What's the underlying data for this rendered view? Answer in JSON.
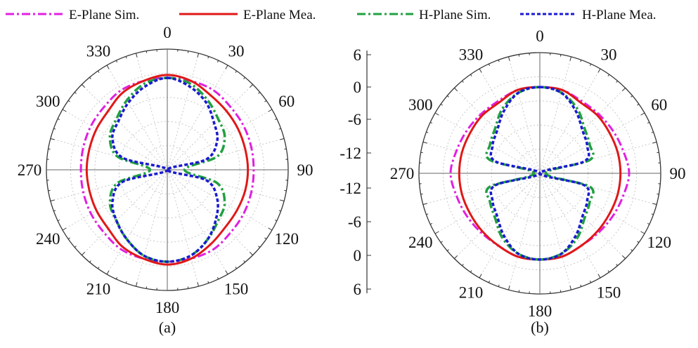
{
  "legend": {
    "items": [
      {
        "label": "E-Plane Sim.",
        "color": "#e020e0",
        "dash": "dashdot"
      },
      {
        "label": "E-Plane Mea.",
        "color": "#e01818",
        "dash": "solid"
      },
      {
        "label": "H-Plane Sim.",
        "color": "#20a040",
        "dash": "dashdot"
      },
      {
        "label": "H-Plane Mea.",
        "color": "#1a1ad0",
        "dash": "dotted"
      }
    ]
  },
  "chart_data": [
    {
      "type": "polar",
      "panel_label": "(a)",
      "angle_ticks": [
        "0",
        "30",
        "60",
        "90",
        "120",
        "150",
        "180",
        "210",
        "240",
        "270",
        "300",
        "330"
      ],
      "radial_range_db": [
        -15,
        6
      ],
      "radial_ticks": [
        "6",
        "0",
        "-6",
        "-12"
      ],
      "grid": true,
      "angles_deg": [
        0,
        15,
        30,
        45,
        60,
        75,
        90,
        105,
        120,
        135,
        150,
        165,
        180,
        195,
        210,
        225,
        240,
        255,
        270,
        285,
        300,
        315,
        330,
        345
      ],
      "series": [
        {
          "name": "E-Plane Sim.",
          "values": [
            1,
            1,
            1,
            0.5,
            0.3,
            0.1,
            0,
            0.1,
            0.3,
            0.5,
            1,
            1,
            1,
            1,
            1,
            0.5,
            0.3,
            0.1,
            0,
            0.1,
            0.3,
            0.5,
            1,
            1
          ]
        },
        {
          "name": "E-Plane Mea.",
          "values": [
            1.5,
            1,
            0,
            -0.5,
            -0.8,
            -1,
            -1,
            -1,
            -1,
            -0.8,
            0,
            1,
            1.5,
            1,
            0.5,
            -0.5,
            -0.8,
            -1,
            -1,
            -1,
            -0.8,
            -0.5,
            0.5,
            1
          ]
        },
        {
          "name": "H-Plane Sim.",
          "values": [
            1,
            0.5,
            -1,
            -2.5,
            -3.5,
            -6,
            -12,
            -6,
            -3.5,
            -2.5,
            -1,
            0.5,
            1,
            0.5,
            -1,
            -2.5,
            -3.5,
            -6,
            -12,
            -6,
            -3.5,
            -2.5,
            -1,
            0.5
          ]
        },
        {
          "name": "H-Plane Mea.",
          "values": [
            1,
            0,
            -1.5,
            -3.5,
            -5,
            -8,
            -15,
            -8,
            -5,
            -3,
            -1,
            0.5,
            1,
            0.5,
            -1,
            -2.5,
            -4,
            -7,
            -15,
            -7,
            -4,
            -3,
            -1.5,
            0
          ]
        }
      ]
    },
    {
      "type": "polar",
      "panel_label": "(b)",
      "angle_ticks": [
        "0",
        "30",
        "60",
        "90",
        "120",
        "150",
        "180",
        "210",
        "240",
        "270",
        "300",
        "330"
      ],
      "radial_range_db": [
        -15,
        6
      ],
      "radial_ticks": [
        "6",
        "0",
        "-6",
        "-12"
      ],
      "grid": true,
      "angles_deg": [
        0,
        15,
        30,
        45,
        60,
        75,
        90,
        105,
        120,
        135,
        150,
        165,
        180,
        195,
        210,
        225,
        240,
        255,
        270,
        285,
        300,
        315,
        330,
        345
      ],
      "series": [
        {
          "name": "E-Plane Sim.",
          "values": [
            0,
            0,
            -0.5,
            -0.5,
            -0.3,
            0,
            0.5,
            0,
            -0.3,
            -0.5,
            -0.5,
            0,
            0,
            0,
            -0.5,
            -0.5,
            -0.3,
            0,
            0.5,
            0,
            -0.3,
            -0.5,
            -0.5,
            0
          ]
        },
        {
          "name": "E-Plane Mea.",
          "values": [
            0,
            0,
            -0.8,
            -0.8,
            -1,
            -1,
            -1,
            -1,
            -1,
            -0.8,
            -0.5,
            0,
            0,
            0,
            -0.5,
            -0.8,
            -1,
            -1,
            -1,
            -1,
            -1,
            -0.8,
            -0.8,
            0
          ]
        },
        {
          "name": "H-Plane Sim.",
          "values": [
            0,
            -0.5,
            -2,
            -4,
            -5,
            -6,
            -14,
            -6,
            -5,
            -4,
            -2,
            -0.5,
            0,
            -0.5,
            -2,
            -4,
            -5,
            -6,
            -14,
            -6,
            -5,
            -4,
            -2,
            -0.5
          ]
        },
        {
          "name": "H-Plane Mea.",
          "values": [
            0,
            -0.5,
            -2.5,
            -4.5,
            -5.5,
            -7,
            -15,
            -7,
            -5.5,
            -4.5,
            -2.5,
            -0.5,
            0,
            -0.5,
            -2.5,
            -4.5,
            -5.5,
            -7,
            -15,
            -7,
            -5.5,
            -4.5,
            -2.5,
            -0.5
          ]
        }
      ]
    }
  ],
  "center_scale": {
    "ticks": [
      "6",
      "0",
      "-6",
      "-12",
      "-12",
      "-6",
      "0",
      "6"
    ]
  }
}
